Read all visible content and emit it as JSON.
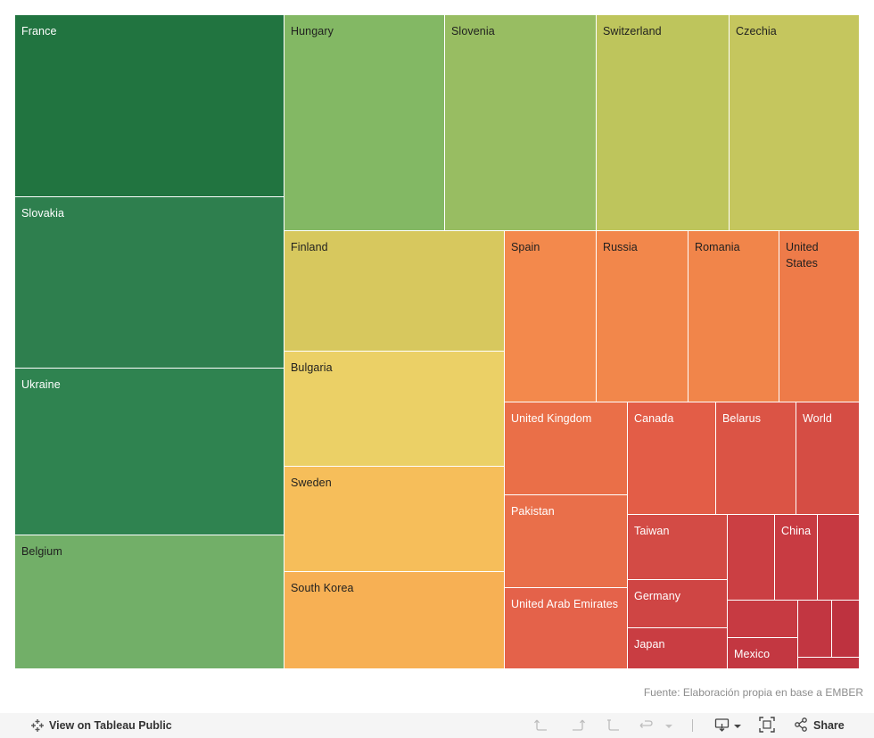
{
  "chart_data": {
    "type": "treemap",
    "cells": [
      {
        "label": "France",
        "value": 60.5,
        "color": "#217440",
        "text": "#ffffff"
      },
      {
        "label": "Slovakia",
        "value": 57.8,
        "color": "#2e7f4e",
        "text": "#ffffff"
      },
      {
        "label": "Ukraine",
        "value": 56.1,
        "color": "#2f8350",
        "text": "#ffffff"
      },
      {
        "label": "Belgium",
        "value": 45.1,
        "color": "#72af68",
        "text": "#1f1f1f"
      },
      {
        "label": "Hungary",
        "value": 42.4,
        "color": "#83b864",
        "text": "#1f1f1f"
      },
      {
        "label": "Slovenia",
        "value": 39.9,
        "color": "#98bd62",
        "text": "#1f1f1f"
      },
      {
        "label": "Switzerland",
        "value": 35.0,
        "color": "#bec55c",
        "text": "#1f1f1f"
      },
      {
        "label": "Czechia",
        "value": 34.7,
        "color": "#c5c65e",
        "text": "#1f1f1f"
      },
      {
        "label": "Finland",
        "value": 33.0,
        "color": "#d7c85e",
        "text": "#1f1f1f"
      },
      {
        "label": "Bulgaria",
        "value": 31.5,
        "color": "#ebd066",
        "text": "#1f1f1f"
      },
      {
        "label": "Sweden",
        "value": 29.0,
        "color": "#f6be5a",
        "text": "#1f1f1f"
      },
      {
        "label": "South Korea",
        "value": 26.5,
        "color": "#f7b054",
        "text": "#1f1f1f"
      },
      {
        "label": "Spain",
        "value": 20.3,
        "color": "#f3894c",
        "text": "#1f1f1f"
      },
      {
        "label": "Russia",
        "value": 20.0,
        "color": "#f2874b",
        "text": "#1f1f1f"
      },
      {
        "label": "Romania",
        "value": 20.0,
        "color": "#f1854a",
        "text": "#1f1f1f"
      },
      {
        "label": "United States",
        "value": 17.9,
        "color": "#ee7b49",
        "text": "#1f1f1f"
      },
      {
        "label": "United Kingdom",
        "value": 14.9,
        "color": "#ea6f48",
        "text": "#ffffff"
      },
      {
        "label": "Pakistan",
        "value": 14.9,
        "color": "#e96f4a",
        "text": "#ffffff"
      },
      {
        "label": "United Arab Emirates",
        "value": 13.3,
        "color": "#e4624a",
        "text": "#ffffff"
      },
      {
        "label": "Canada",
        "value": 14.1,
        "color": "#e35d47",
        "text": "#ffffff"
      },
      {
        "label": "Belarus",
        "value": 11.4,
        "color": "#db5445",
        "text": "#ffffff"
      },
      {
        "label": "World",
        "value": 9.8,
        "color": "#d54d44",
        "text": "#ffffff"
      },
      {
        "label": "Taiwan",
        "value": 8.5,
        "color": "#d34b45",
        "text": "#ffffff"
      },
      {
        "label": "Germany",
        "value": 6.4,
        "color": "#cf4544",
        "text": "#ffffff"
      },
      {
        "label": "Japan",
        "value": 5.8,
        "color": "#c93d42",
        "text": "#ffffff"
      },
      {
        "label": "",
        "value": 5.8,
        "color": "#cb3f43",
        "text": "#ffffff"
      },
      {
        "label": "China",
        "value": 5.3,
        "color": "#c83b42",
        "text": "#ffffff"
      },
      {
        "label": "",
        "value": 5.3,
        "color": "#c63941",
        "text": "#ffffff"
      },
      {
        "label": "",
        "value": 4.3,
        "color": "#c73a42",
        "text": "#ffffff"
      },
      {
        "label": "Mexico",
        "value": 4.1,
        "color": "#c33741",
        "text": "#ffffff"
      },
      {
        "label": "",
        "value": 2.5,
        "color": "#c23641",
        "text": "#ffffff"
      },
      {
        "label": "",
        "value": 2.4,
        "color": "#be323f",
        "text": "#ffffff"
      },
      {
        "label": "",
        "value": 1.2,
        "color": "#bf333f",
        "text": "#ffffff"
      }
    ]
  },
  "source": "Fuente: Elaboración propia en base a EMBER",
  "toolbar": {
    "view_label": "View on Tableau Public",
    "share_label": "Share"
  }
}
